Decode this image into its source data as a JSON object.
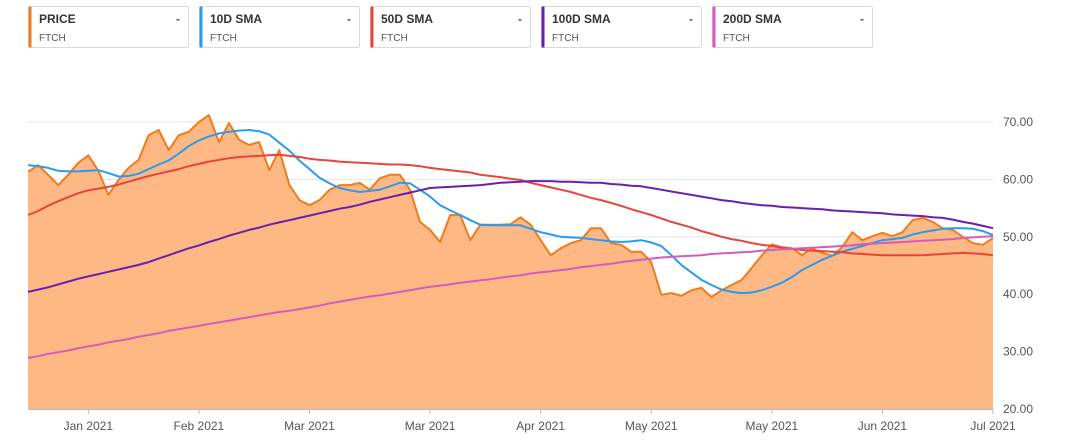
{
  "chart_data": {
    "type": "line",
    "categories": [
      null,
      null,
      null,
      null,
      null,
      null,
      "Jan 2021",
      null,
      null,
      null,
      null,
      null,
      null,
      null,
      null,
      null,
      null,
      "Feb 2021",
      null,
      null,
      null,
      null,
      null,
      null,
      null,
      null,
      null,
      null,
      "Mar 2021",
      null,
      null,
      null,
      null,
      null,
      null,
      null,
      null,
      null,
      null,
      null,
      "Mar 2021",
      null,
      null,
      null,
      null,
      null,
      null,
      null,
      null,
      null,
      null,
      "Apr 2021",
      null,
      null,
      null,
      null,
      null,
      null,
      null,
      null,
      null,
      null,
      "May 2021",
      null,
      null,
      null,
      null,
      null,
      null,
      null,
      null,
      null,
      null,
      null,
      "May 2021",
      null,
      null,
      null,
      null,
      null,
      null,
      null,
      null,
      null,
      null,
      "Jun 2021",
      null,
      null,
      null,
      null,
      null,
      null,
      null,
      null,
      null,
      null,
      "Jul 2021"
    ],
    "ylim": [
      20,
      70
    ],
    "yticks": [
      {
        "value": 20,
        "label": "20.00"
      },
      {
        "value": 30,
        "label": "30.00"
      },
      {
        "value": 40,
        "label": "40.00"
      },
      {
        "value": 50,
        "label": "50.00"
      },
      {
        "value": 60,
        "label": "60.00"
      },
      {
        "value": 70,
        "label": "70.00"
      }
    ],
    "grid": true,
    "series": [
      {
        "name": "PRICE",
        "ticker": "FTCH",
        "legend_value": "-",
        "color": "#f27b1c",
        "fill_color": "#fdb884",
        "area": true,
        "values": [
          61.3,
          62.5,
          60.8,
          59.0,
          60.8,
          62.9,
          64.2,
          61.5,
          57.3,
          59.9,
          62.0,
          63.4,
          67.7,
          68.6,
          65.1,
          67.7,
          68.3,
          70.0,
          71.2,
          66.5,
          69.8,
          66.9,
          66.0,
          66.5,
          61.6,
          65.1,
          59.0,
          56.4,
          55.5,
          56.4,
          58.2,
          59.0,
          59.0,
          59.4,
          58.2,
          60.2,
          60.8,
          60.8,
          58.2,
          52.6,
          51.2,
          49.1,
          53.8,
          53.8,
          49.4,
          52.1,
          52.1,
          52.1,
          52.2,
          53.4,
          52.1,
          49.4,
          46.8,
          48.0,
          48.9,
          49.4,
          51.5,
          51.5,
          48.9,
          48.6,
          47.4,
          47.4,
          45.6,
          39.9,
          40.2,
          39.7,
          40.7,
          41.1,
          39.5,
          40.7,
          41.6,
          42.5,
          44.6,
          46.8,
          48.7,
          48.2,
          48.0,
          46.8,
          48.0,
          47.2,
          46.7,
          48.2,
          50.8,
          49.4,
          50.1,
          50.7,
          50.1,
          50.8,
          52.9,
          53.3,
          52.6,
          51.5,
          51.2,
          50.0,
          48.9,
          48.6,
          49.8
        ]
      },
      {
        "name": "10D SMA",
        "ticker": "FTCH",
        "legend_value": "-",
        "color": "#2b9bf0",
        "values": [
          62.5,
          62.3,
          62.0,
          61.5,
          61.4,
          61.4,
          61.5,
          61.6,
          61.1,
          60.5,
          60.6,
          61.0,
          61.8,
          62.6,
          63.3,
          64.5,
          65.8,
          66.8,
          67.5,
          68.0,
          68.3,
          68.5,
          68.6,
          68.4,
          67.8,
          66.4,
          65.0,
          63.3,
          61.8,
          60.3,
          59.3,
          58.5,
          58.1,
          57.8,
          58.0,
          58.2,
          58.8,
          59.4,
          59.3,
          58.2,
          57.0,
          55.5,
          54.6,
          53.8,
          52.9,
          52.1,
          52.0,
          52.0,
          52.0,
          52.0,
          51.4,
          50.8,
          50.4,
          50.0,
          49.9,
          49.8,
          49.6,
          49.4,
          49.2,
          49.1,
          49.2,
          49.4,
          49.0,
          48.4,
          46.8,
          45.1,
          43.8,
          42.5,
          41.6,
          40.8,
          40.4,
          40.2,
          40.3,
          40.7,
          41.3,
          42.0,
          43.0,
          44.2,
          45.1,
          46.0,
          46.7,
          47.4,
          47.9,
          48.4,
          48.9,
          49.4,
          49.6,
          49.8,
          50.4,
          50.8,
          51.1,
          51.4,
          51.5,
          51.5,
          51.4,
          51.0,
          50.3
        ]
      },
      {
        "name": "50D SMA",
        "ticker": "FTCH",
        "legend_value": "-",
        "color": "#e8443c",
        "values": [
          53.8,
          54.5,
          55.4,
          56.2,
          56.9,
          57.6,
          58.1,
          58.4,
          58.7,
          59.1,
          59.6,
          60.1,
          60.6,
          61.0,
          61.4,
          61.8,
          62.3,
          62.7,
          63.1,
          63.4,
          63.7,
          63.9,
          64.0,
          64.1,
          64.2,
          64.3,
          64.1,
          63.9,
          63.6,
          63.4,
          63.3,
          63.1,
          63.0,
          62.9,
          62.8,
          62.7,
          62.6,
          62.6,
          62.5,
          62.3,
          62.0,
          61.8,
          61.6,
          61.4,
          61.2,
          60.8,
          60.6,
          60.4,
          60.1,
          59.9,
          59.4,
          59.0,
          58.6,
          58.2,
          57.8,
          57.3,
          56.8,
          56.4,
          55.9,
          55.4,
          54.8,
          54.3,
          53.8,
          53.2,
          52.6,
          52.1,
          51.6,
          51.0,
          50.5,
          50.0,
          49.6,
          49.3,
          48.9,
          48.6,
          48.4,
          48.1,
          47.9,
          47.7,
          47.6,
          47.5,
          47.4,
          47.3,
          47.1,
          47.0,
          46.9,
          46.8,
          46.8,
          46.8,
          46.8,
          46.8,
          46.9,
          47.0,
          47.1,
          47.2,
          47.1,
          47.0,
          46.8
        ]
      },
      {
        "name": "100D SMA",
        "ticker": "FTCH",
        "legend_value": "-",
        "color": "#6a1fae",
        "values": [
          40.4,
          40.8,
          41.2,
          41.7,
          42.2,
          42.7,
          43.1,
          43.5,
          43.9,
          44.3,
          44.7,
          45.1,
          45.6,
          46.2,
          46.8,
          47.4,
          48.0,
          48.5,
          49.1,
          49.6,
          50.2,
          50.7,
          51.2,
          51.6,
          52.1,
          52.5,
          52.9,
          53.3,
          53.7,
          54.1,
          54.5,
          54.9,
          55.2,
          55.6,
          56.1,
          56.5,
          56.9,
          57.3,
          57.7,
          58.1,
          58.5,
          58.6,
          58.7,
          58.8,
          58.9,
          59.0,
          59.2,
          59.4,
          59.5,
          59.6,
          59.7,
          59.7,
          59.7,
          59.6,
          59.6,
          59.5,
          59.4,
          59.4,
          59.2,
          59.1,
          58.9,
          58.8,
          58.5,
          58.2,
          57.9,
          57.6,
          57.3,
          57.0,
          56.7,
          56.4,
          56.2,
          55.9,
          55.7,
          55.5,
          55.4,
          55.2,
          55.1,
          55.0,
          54.9,
          54.8,
          54.6,
          54.5,
          54.4,
          54.3,
          54.2,
          54.1,
          53.9,
          53.8,
          53.7,
          53.6,
          53.4,
          53.3,
          53.0,
          52.6,
          52.3,
          51.9,
          51.5
        ]
      },
      {
        "name": "200D SMA",
        "ticker": "FTCH",
        "legend_value": "-",
        "color": "#d45cbd",
        "values": [
          28.9,
          29.2,
          29.6,
          29.9,
          30.2,
          30.6,
          30.9,
          31.2,
          31.6,
          31.9,
          32.2,
          32.6,
          32.9,
          33.2,
          33.6,
          33.9,
          34.2,
          34.5,
          34.8,
          35.1,
          35.4,
          35.7,
          36.0,
          36.3,
          36.6,
          36.9,
          37.1,
          37.4,
          37.7,
          38.0,
          38.4,
          38.7,
          39.0,
          39.3,
          39.6,
          39.8,
          40.1,
          40.4,
          40.7,
          41.0,
          41.3,
          41.5,
          41.7,
          42.0,
          42.2,
          42.4,
          42.6,
          42.9,
          43.1,
          43.3,
          43.6,
          43.8,
          44.0,
          44.2,
          44.4,
          44.7,
          44.9,
          45.1,
          45.3,
          45.6,
          45.8,
          46.0,
          46.2,
          46.4,
          46.5,
          46.6,
          46.7,
          46.8,
          47.0,
          47.1,
          47.2,
          47.3,
          47.4,
          47.6,
          47.7,
          47.8,
          47.9,
          48.0,
          48.1,
          48.2,
          48.3,
          48.4,
          48.5,
          48.7,
          48.8,
          48.9,
          49.0,
          49.1,
          49.2,
          49.3,
          49.4,
          49.5,
          49.6,
          49.8,
          49.9,
          50.0,
          50.1
        ]
      }
    ]
  }
}
